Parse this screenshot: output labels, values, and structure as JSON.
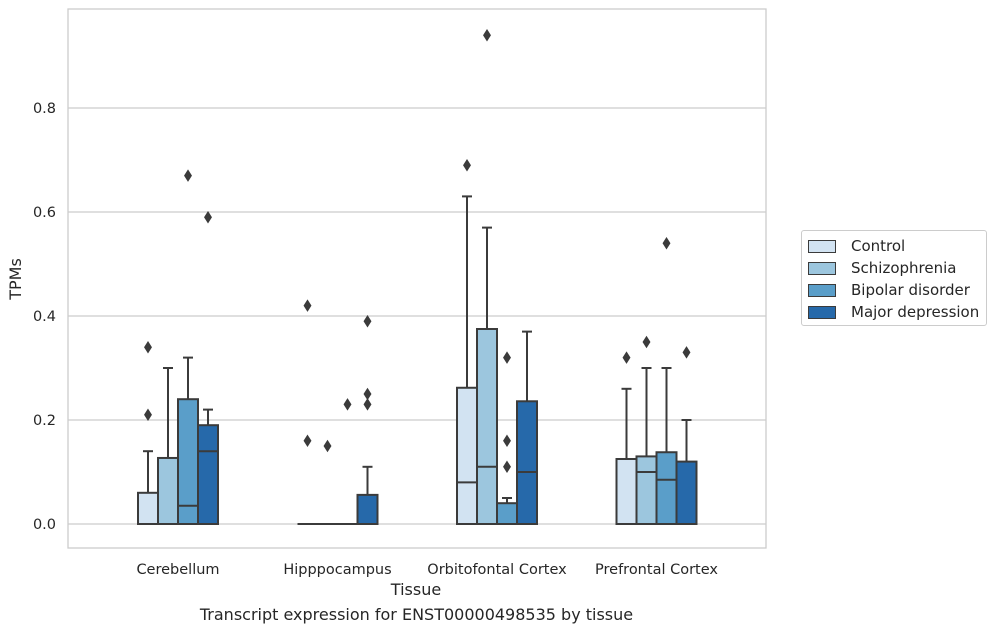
{
  "caption": "Transcript expression for ENST00000498535 by tissue",
  "colors": {
    "series": [
      "#d2e3f2",
      "#9cc6de",
      "#5a9ec9",
      "#2669aa"
    ],
    "edge": "#3b3b3b",
    "grid": "#cccccc",
    "axes_frame": "#cccccc"
  },
  "chart_data": {
    "type": "box",
    "xlabel": "Tissue",
    "ylabel": "TPMs",
    "ylim": [
      -0.045,
      0.985
    ],
    "yticks": [
      0.0,
      0.2,
      0.4,
      0.6,
      0.8
    ],
    "ytick_labels": [
      "0.0",
      "0.2",
      "0.4",
      "0.6",
      "0.8"
    ],
    "grid": "horizontal",
    "legend_position": "right, outside plot",
    "categories": [
      "Cerebellum",
      "Hipppocampus",
      "Orbitofontal Cortex",
      "Prefrontal Cortex"
    ],
    "series": [
      {
        "name": "Control",
        "boxes": [
          {
            "q1": 0.0,
            "median": 0.0,
            "q3": 0.06,
            "whislo": 0.0,
            "whishi": 0.14,
            "fliers": [
              0.21,
              0.34
            ]
          },
          {
            "q1": 0.0,
            "median": 0.0,
            "q3": 0.0,
            "whislo": 0.0,
            "whishi": 0.0,
            "fliers": [
              0.16,
              0.42
            ]
          },
          {
            "q1": 0.0,
            "median": 0.08,
            "q3": 0.262,
            "whislo": 0.0,
            "whishi": 0.63,
            "fliers": [
              0.69
            ]
          },
          {
            "q1": 0.0,
            "median": 0.0,
            "q3": 0.125,
            "whislo": 0.0,
            "whishi": 0.26,
            "fliers": [
              0.32
            ]
          }
        ]
      },
      {
        "name": "Schizophrenia",
        "boxes": [
          {
            "q1": 0.0,
            "median": 0.0,
            "q3": 0.127,
            "whislo": 0.0,
            "whishi": 0.3,
            "fliers": []
          },
          {
            "q1": 0.0,
            "median": 0.0,
            "q3": 0.0,
            "whislo": 0.0,
            "whishi": 0.0,
            "fliers": [
              0.15
            ]
          },
          {
            "q1": 0.0,
            "median": 0.11,
            "q3": 0.375,
            "whislo": 0.0,
            "whishi": 0.57,
            "fliers": [
              0.94
            ]
          },
          {
            "q1": 0.0,
            "median": 0.1,
            "q3": 0.13,
            "whislo": 0.0,
            "whishi": 0.3,
            "fliers": [
              0.35
            ]
          }
        ]
      },
      {
        "name": "Bipolar disorder",
        "boxes": [
          {
            "q1": 0.0,
            "median": 0.035,
            "q3": 0.24,
            "whislo": 0.0,
            "whishi": 0.32,
            "fliers": [
              0.67
            ]
          },
          {
            "q1": 0.0,
            "median": 0.0,
            "q3": 0.0,
            "whislo": 0.0,
            "whishi": 0.0,
            "fliers": [
              0.23
            ]
          },
          {
            "q1": 0.0,
            "median": 0.0,
            "q3": 0.04,
            "whislo": 0.0,
            "whishi": 0.05,
            "fliers": [
              0.11,
              0.16,
              0.32
            ]
          },
          {
            "q1": 0.0,
            "median": 0.085,
            "q3": 0.138,
            "whislo": 0.0,
            "whishi": 0.3,
            "fliers": [
              0.54
            ]
          }
        ]
      },
      {
        "name": "Major depression",
        "boxes": [
          {
            "q1": 0.0,
            "median": 0.14,
            "q3": 0.19,
            "whislo": 0.0,
            "whishi": 0.22,
            "fliers": [
              0.59
            ]
          },
          {
            "q1": 0.0,
            "median": 0.0,
            "q3": 0.056,
            "whislo": 0.0,
            "whishi": 0.11,
            "fliers": [
              0.23,
              0.25,
              0.39
            ]
          },
          {
            "q1": 0.0,
            "median": 0.1,
            "q3": 0.236,
            "whislo": 0.0,
            "whishi": 0.37,
            "fliers": []
          },
          {
            "q1": 0.0,
            "median": 0.0,
            "q3": 0.12,
            "whislo": 0.0,
            "whishi": 0.2,
            "fliers": [
              0.33
            ]
          }
        ]
      }
    ]
  }
}
